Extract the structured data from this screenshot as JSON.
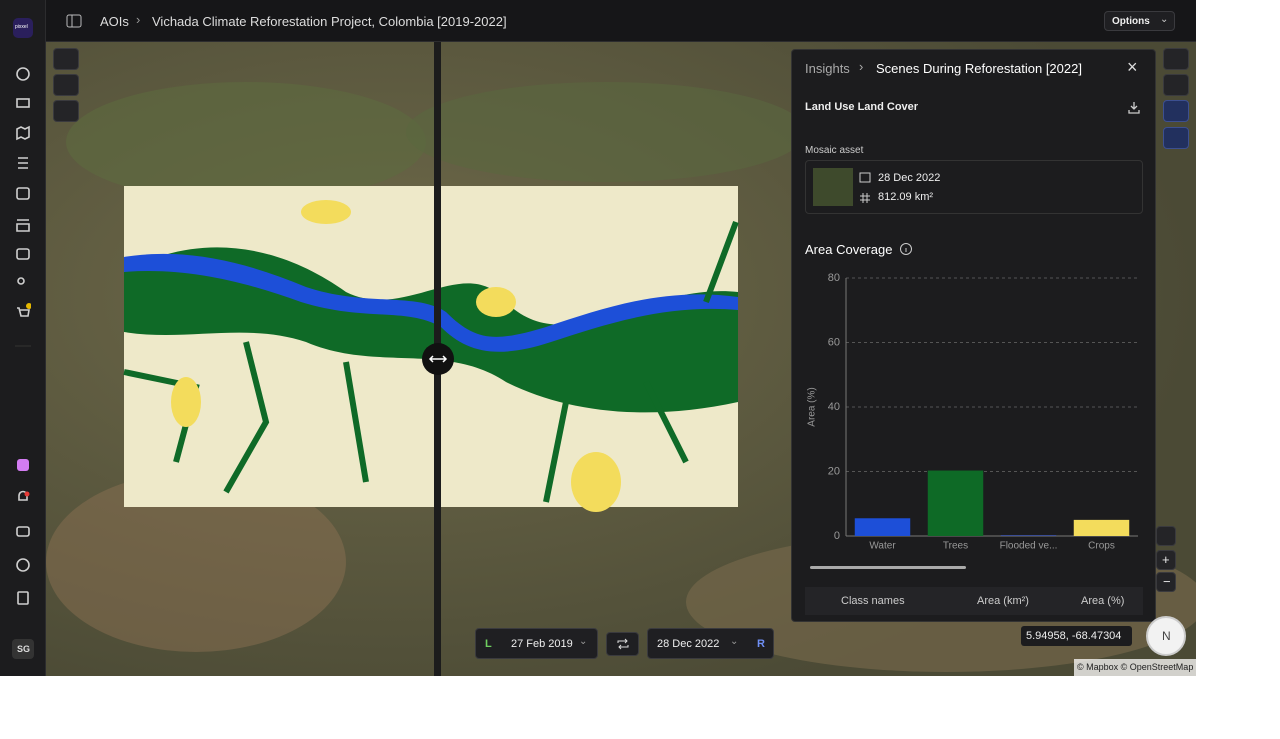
{
  "app": {
    "logo": "pixxel"
  },
  "header": {
    "breadcrumb_root": "AOIs",
    "title": "Vichada Climate Reforestation Project, Colombia [2019-2022]",
    "options": "Options"
  },
  "sidebar": {
    "user_initials": "SG"
  },
  "panel": {
    "breadcrumb_root": "Insights",
    "title": "Scenes During Reforestation [2022]",
    "section": "Land Use Land Cover",
    "mosaic_label": "Mosaic asset",
    "mosaic_date": "28 Dec 2022",
    "mosaic_area": "812.09 km²",
    "coverage_title": "Area Coverage",
    "table_headers": [
      "Class names",
      "Area (km²)",
      "Area (%)"
    ]
  },
  "chart_data": {
    "type": "bar",
    "y_label": "Area (%)",
    "categories": [
      "Water",
      "Trees",
      "Flooded ve...",
      "Crops"
    ],
    "values": [
      5.5,
      20.3,
      0.3,
      5
    ],
    "colors": [
      "#1d4fd8",
      "#0e6a26",
      "#3b4f9a",
      "#f3dc5c"
    ],
    "ylim": [
      0,
      80
    ],
    "yticks": [
      0,
      20,
      40,
      60,
      80
    ],
    "grid": true
  },
  "compare": {
    "left_label": "L",
    "left_date": "27 Feb 2019",
    "right_date": "28 Dec 2022",
    "right_label": "R"
  },
  "map": {
    "coordinates": "5.94958, -68.47304",
    "compass": "N",
    "attribution": "© Mapbox © OpenStreetMap"
  }
}
